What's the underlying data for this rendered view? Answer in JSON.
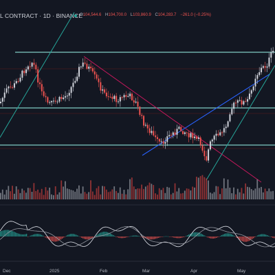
{
  "header": {
    "symbol_title": "L CONTRACT · 1D · BINANCE",
    "ohlc": [
      {
        "key": "O",
        "value": "104,544.6"
      },
      {
        "key": "H",
        "value": "104,700.0"
      },
      {
        "key": "L",
        "value": "103,860.9"
      },
      {
        "key": "C",
        "value": "104,283.7"
      },
      {
        "key": "",
        "value": "−261.0 (−0.25%)"
      }
    ]
  },
  "time_axis": {
    "labels": [
      "Dec",
      "2025",
      "Feb",
      "Mar",
      "Apr",
      "May"
    ]
  },
  "colors": {
    "background": "#131722",
    "up": "#d1d4dc",
    "down": "#ef5350",
    "horizontal_line": "#80cbc4",
    "red_line": "#b71c1c",
    "trend_up": "#2962ff",
    "trend_green": "#26a69a",
    "trend_down": "#e91e63"
  }
}
